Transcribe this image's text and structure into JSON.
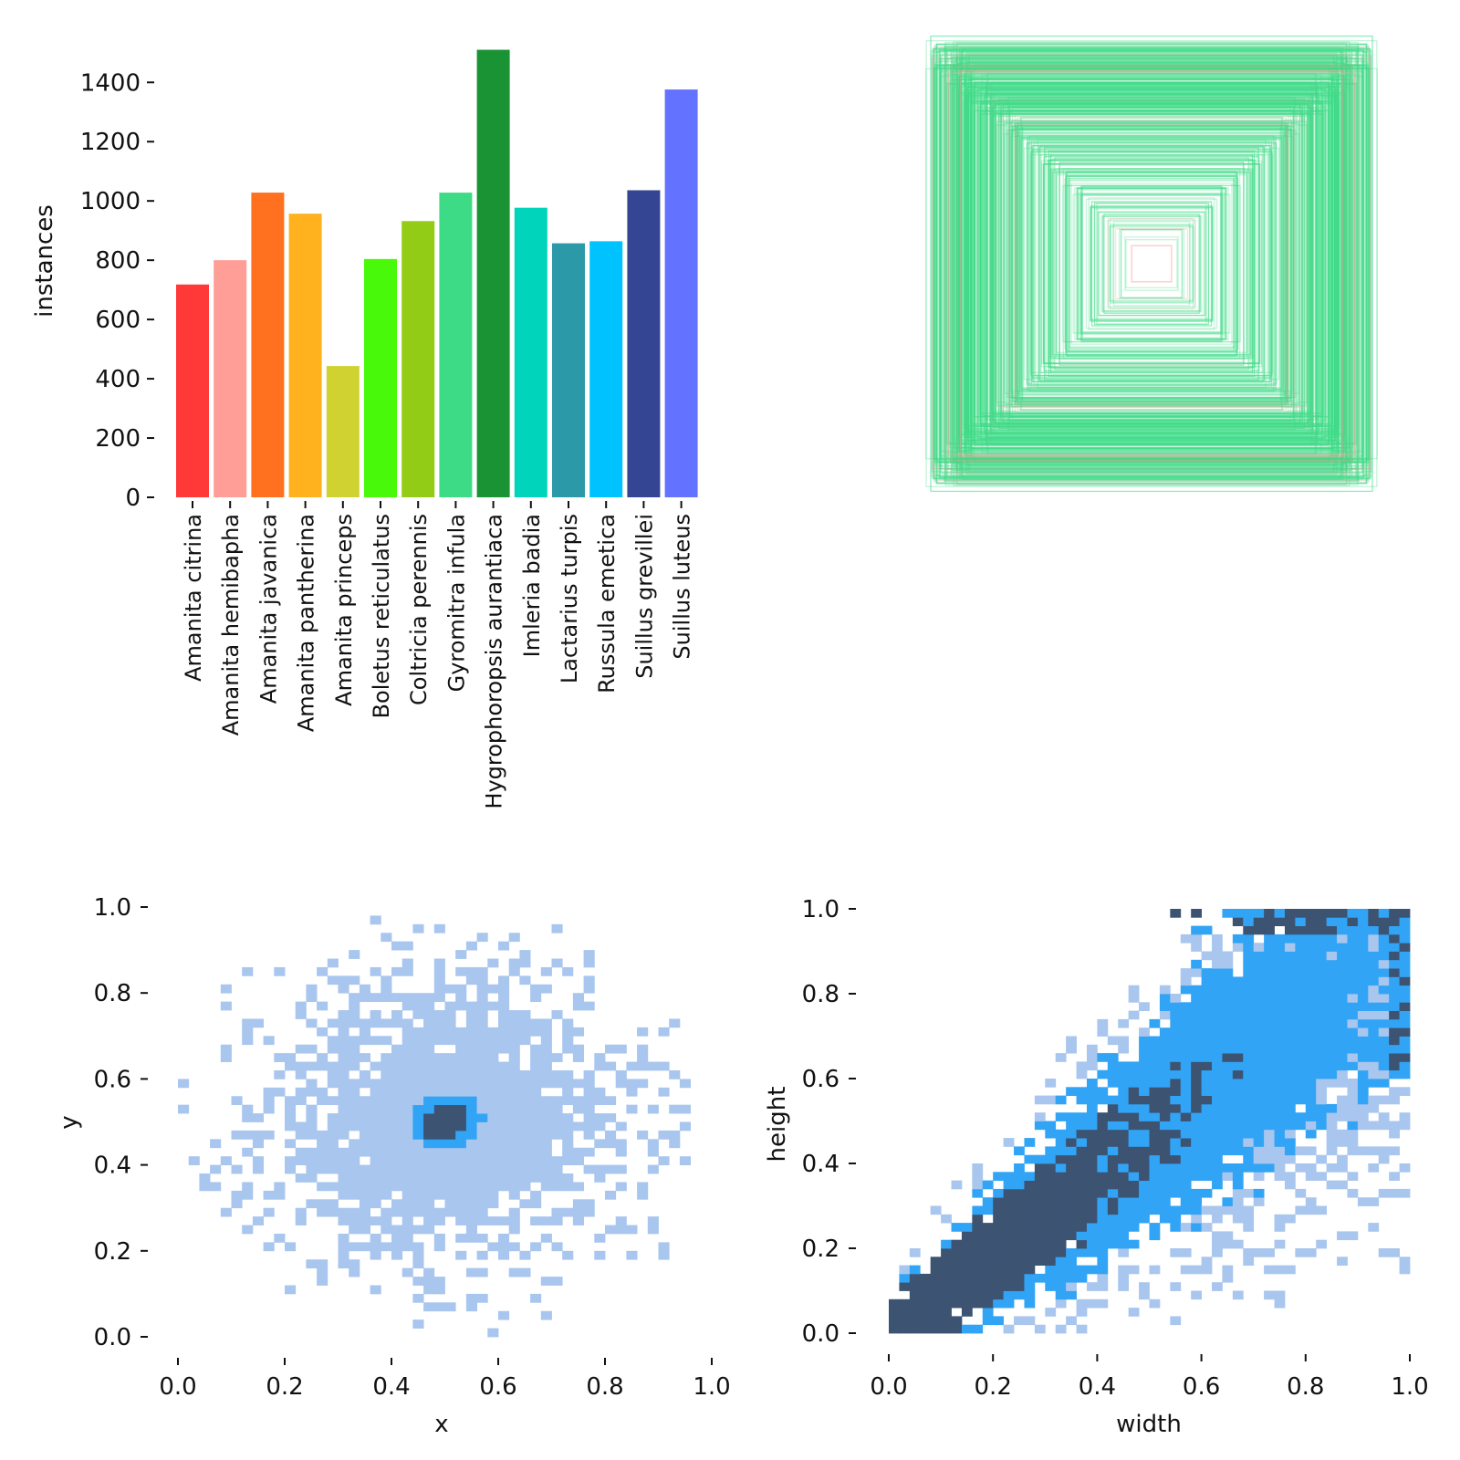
{
  "chart_data": [
    {
      "type": "bar",
      "ylabel": "instances",
      "ylim": [
        0,
        1500
      ],
      "yticks": [
        0,
        200,
        400,
        600,
        800,
        1000,
        1200,
        1400
      ],
      "categories": [
        "Amanita citrina",
        "Amanita hemibapha",
        "Amanita javanica",
        "Amanita pantherina",
        "Amanita princeps",
        "Boletus reticulatus",
        "Coltricia perennis",
        "Gyromitra infula",
        "Hygrophoropsis aurantiaca",
        "Imleria badia",
        "Lactarius turpis",
        "Russula emetica",
        "Suillus grevillei",
        "Suillus luteus"
      ],
      "values": [
        718,
        800,
        1028,
        957,
        443,
        804,
        932,
        1028,
        1510,
        977,
        857,
        864,
        1036,
        1376
      ],
      "colors": [
        "#ff3838",
        "#ff9d97",
        "#ff701f",
        "#ffb21d",
        "#cfd231",
        "#48f90a",
        "#92cc17",
        "#3ddb86",
        "#1a9334",
        "#00d4bb",
        "#2c99a8",
        "#00c2ff",
        "#344593",
        "#6473ff"
      ]
    },
    {
      "type": "box-overlay",
      "description_color": "#3ddb86",
      "secondary_color": "#ff9d97"
    },
    {
      "type": "heatmap",
      "xlabel": "x",
      "ylabel": "y",
      "xlim": [
        0,
        1
      ],
      "ylim": [
        0,
        1
      ],
      "xticks": [
        "0.0",
        "0.2",
        "0.4",
        "0.6",
        "0.8",
        "1.0"
      ],
      "yticks": [
        "0.0",
        "0.2",
        "0.4",
        "0.6",
        "0.8",
        "1.0"
      ],
      "bins": 50,
      "center": [
        0.5,
        0.5
      ]
    },
    {
      "type": "heatmap",
      "xlabel": "width",
      "ylabel": "height",
      "xlim": [
        0,
        1
      ],
      "ylim": [
        0,
        1
      ],
      "xticks": [
        "0.0",
        "0.2",
        "0.4",
        "0.6",
        "0.8",
        "1.0"
      ],
      "yticks": [
        "0.0",
        "0.2",
        "0.4",
        "0.6",
        "0.8",
        "1.0"
      ],
      "bins": 50,
      "trend": "height roughly equals width"
    }
  ],
  "palette": {
    "light": "#a9c6ee",
    "mid": "#32a4f5",
    "dark": "#3c5372"
  }
}
